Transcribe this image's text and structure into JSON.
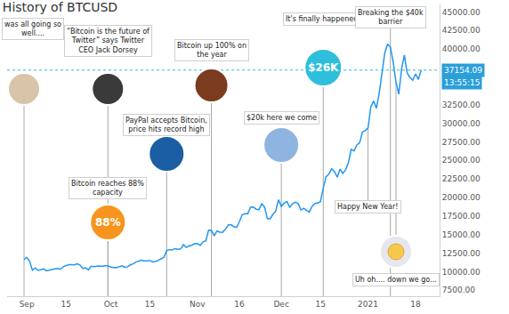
{
  "chart_data": {
    "type": "line",
    "title": "History of BTCUSD",
    "color": "#2196f3",
    "grid": false,
    "categories": [
      null,
      "Sep",
      null,
      null,
      null,
      null,
      null,
      null,
      null,
      null,
      null,
      null,
      null,
      null,
      null,
      "15",
      null,
      null,
      null,
      null,
      null,
      null,
      null,
      null,
      null,
      null,
      null,
      null,
      null,
      null,
      null,
      "Oct",
      null,
      null,
      null,
      null,
      null,
      null,
      null,
      null,
      null,
      null,
      null,
      null,
      null,
      "15",
      null,
      null,
      null,
      null,
      null,
      null,
      null,
      null,
      null,
      null,
      null,
      null,
      null,
      null,
      null,
      null,
      "Nov",
      null,
      null,
      null,
      null,
      null,
      null,
      null,
      null,
      null,
      null,
      null,
      null,
      null,
      null,
      "16",
      null,
      null,
      null,
      null,
      null,
      null,
      null,
      null,
      null,
      null,
      null,
      null,
      null,
      null,
      "Dec",
      null,
      null,
      null,
      null,
      null,
      null,
      null,
      null,
      null,
      null,
      null,
      null,
      null,
      "15",
      null,
      null,
      null,
      null,
      null,
      null,
      null,
      null,
      null,
      null,
      null,
      null,
      null,
      null,
      null,
      null,
      "2021",
      null,
      null,
      null,
      null,
      null,
      null,
      null,
      null,
      null,
      null,
      null,
      null,
      null,
      null,
      null,
      null,
      "18",
      null,
      null
    ],
    "values": [
      11650,
      11920,
      11400,
      10200,
      10500,
      10170,
      10260,
      10370,
      10130,
      10230,
      10340,
      10390,
      10440,
      10330,
      10680,
      10790,
      10950,
      10940,
      10930,
      11080,
      10920,
      10420,
      10530,
      10240,
      10740,
      10690,
      10730,
      10775,
      10710,
      10840,
      10780,
      10620,
      10570,
      10550,
      10670,
      10790,
      10600,
      10670,
      10920,
      11060,
      11300,
      11380,
      11540,
      11430,
      11430,
      11500,
      11320,
      11370,
      11530,
      11750,
      11920,
      12820,
      12970,
      12930,
      13120,
      13030,
      13070,
      13650,
      13280,
      13460,
      13560,
      13800,
      13760,
      13560,
      14030,
      14150,
      15590,
      15580,
      14840,
      15480,
      15330,
      15310,
      15700,
      16280,
      16330,
      16070,
      15960,
      16730,
      17660,
      17800,
      17820,
      18680,
      18710,
      18420,
      18370,
      19160,
      18720,
      17150,
      17140,
      17720,
      18180,
      19700,
      18790,
      19230,
      19450,
      18700,
      19150,
      19360,
      19170,
      18320,
      18550,
      18250,
      18040,
      18800,
      19170,
      19270,
      19440,
      21310,
      22800,
      23130,
      23860,
      23480,
      22740,
      23820,
      23240,
      23730,
      24710,
      26490,
      26280,
      27080,
      27360,
      28840,
      29000,
      29370,
      32190,
      33000,
      32020,
      34040,
      36860,
      39470,
      40670,
      40240,
      38240,
      35540,
      33920,
      37320,
      39190,
      36770,
      36180,
      35790,
      36630,
      35890,
      37154.09
    ],
    "ylim": [
      6700,
      46000
    ],
    "yticks": [
      {
        "value": 7500,
        "label": "7500.00"
      },
      {
        "value": 10000,
        "label": "10000.00"
      },
      {
        "value": 12500,
        "label": "12500.00"
      },
      {
        "value": 15000,
        "label": "15000.00"
      },
      {
        "value": 17500,
        "label": "17500.00"
      },
      {
        "value": 20000,
        "label": "20000.00"
      },
      {
        "value": 22500,
        "label": "22500.00"
      },
      {
        "value": 25000,
        "label": "25000.00"
      },
      {
        "value": 27500,
        "label": "27500.00"
      },
      {
        "value": 30000,
        "label": "30000.00"
      },
      {
        "value": 32500,
        "label": "32500.00"
      },
      {
        "value": 40000,
        "label": "40000.00"
      },
      {
        "value": 42500,
        "label": "42500.00"
      },
      {
        "value": 45000,
        "label": "45000.00"
      }
    ],
    "price_line": {
      "value": 37154.09,
      "time": "13:55:15"
    },
    "annotations": [
      {
        "text": "was all going so\nwell....",
        "x": 0
      },
      {
        "text": "“Bitcoin is the future of\nTwitter” says Twitter\nCEO Jack Dorsey",
        "x": 30
      },
      {
        "text": "Bitcoin reaches 88%\ncapacity",
        "x": 30,
        "badge": "88%"
      },
      {
        "text": "PayPal accepts Bitcoin,\nprice hits record high",
        "x": 51
      },
      {
        "text": "Bitcoin up 100% on\nthe year",
        "x": 67
      },
      {
        "text": "$20k here we come",
        "x": 92
      },
      {
        "text": "It's finally happened!",
        "x": 107,
        "badge": "$26K"
      },
      {
        "text": "Breaking the $40k\nbarrier",
        "x": 131
      },
      {
        "text": "Happy New Year!",
        "x": 123
      },
      {
        "text": "Uh oh.... down we go...",
        "x": 133
      }
    ]
  }
}
